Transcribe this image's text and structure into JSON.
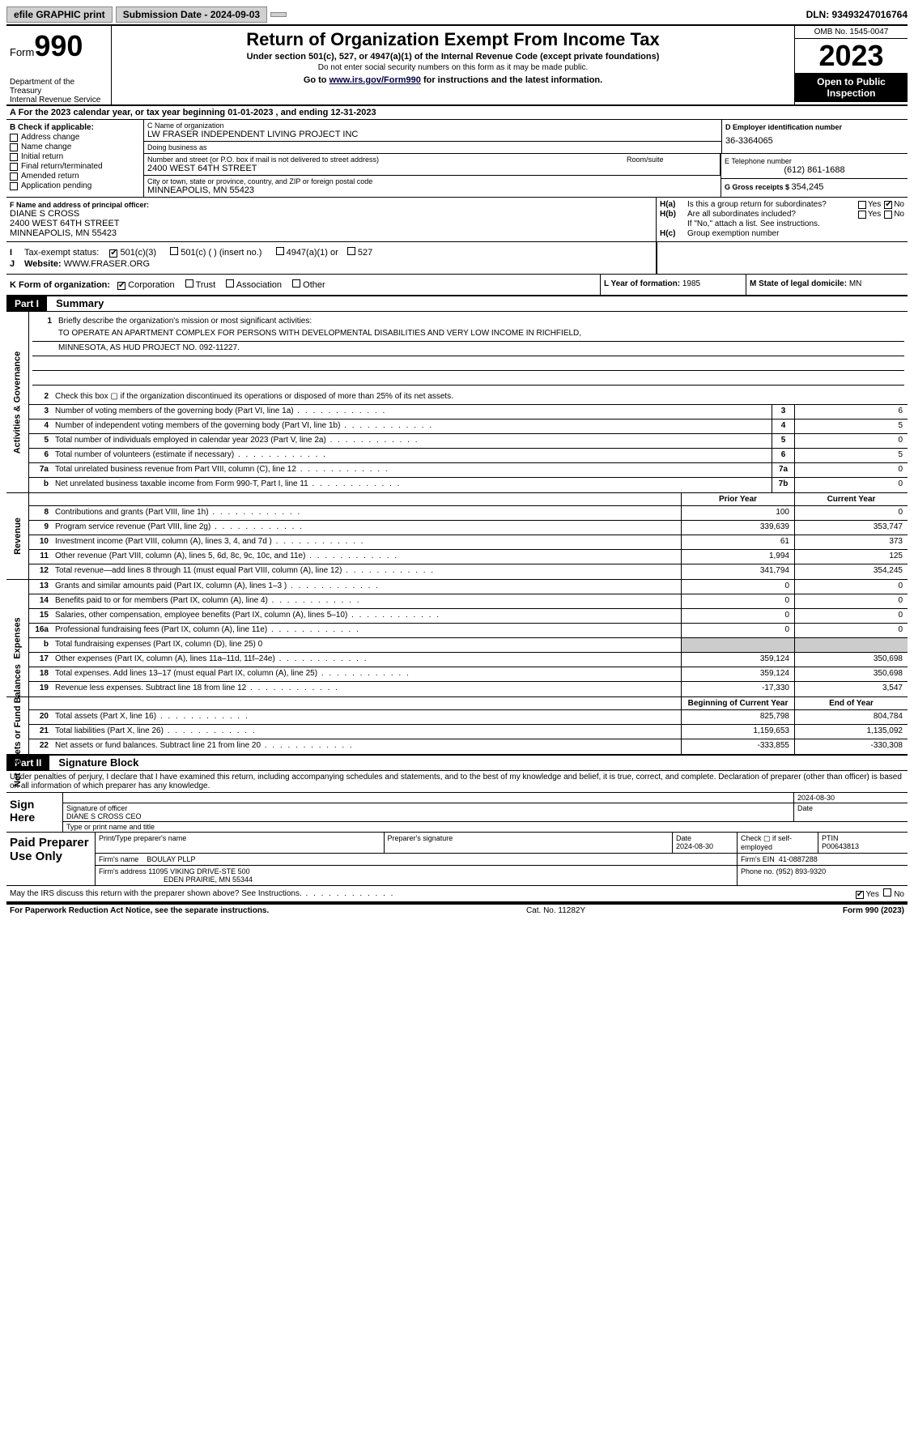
{
  "topbar": {
    "efile": "efile GRAPHIC print",
    "submission_label": "Submission Date - 2024-09-03",
    "dln": "DLN: 93493247016764"
  },
  "header": {
    "form_prefix": "Form",
    "form_number": "990",
    "dept": "Department of the Treasury",
    "irs": "Internal Revenue Service",
    "title": "Return of Organization Exempt From Income Tax",
    "subtitle": "Under section 501(c), 527, or 4947(a)(1) of the Internal Revenue Code (except private foundations)",
    "note": "Do not enter social security numbers on this form as it may be made public.",
    "goto_prefix": "Go to ",
    "goto_link": "www.irs.gov/Form990",
    "goto_suffix": " for instructions and the latest information.",
    "omb": "OMB No. 1545-0047",
    "year": "2023",
    "open": "Open to Public Inspection"
  },
  "row_a": "A  For the 2023 calendar year, or tax year beginning 01-01-2023    , and ending 12-31-2023",
  "col_b": {
    "header": "B Check if applicable:",
    "items": [
      "Address change",
      "Name change",
      "Initial return",
      "Final return/terminated",
      "Amended return",
      "Application pending"
    ]
  },
  "col_c": {
    "name_lbl": "C Name of organization",
    "name": "LW FRASER INDEPENDENT LIVING PROJECT INC",
    "dba_lbl": "Doing business as",
    "dba": "",
    "street_lbl": "Number and street (or P.O. box if mail is not delivered to street address)",
    "street": "2400 WEST 64TH STREET",
    "suite_lbl": "Room/suite",
    "city_lbl": "City or town, state or province, country, and ZIP or foreign postal code",
    "city": "MINNEAPOLIS, MN  55423"
  },
  "col_d": {
    "ein_lbl": "D Employer identification number",
    "ein": "36-3364065",
    "phone_lbl": "E Telephone number",
    "phone": "(612) 861-1688",
    "gross_lbl": "G Gross receipts $ ",
    "gross": "354,245"
  },
  "row_f": {
    "lbl": "F  Name and address of principal officer:",
    "name": "DIANE S CROSS",
    "street": "2400 WEST 64TH STREET",
    "city": "MINNEAPOLIS, MN  55423"
  },
  "row_h": {
    "ha_lbl": "H(a)",
    "ha_txt": "Is this a group return for subordinates?",
    "hb_lbl": "H(b)",
    "hb_txt": "Are all subordinates included?",
    "hb_note": "If \"No,\" attach a list. See instructions.",
    "hc_lbl": "H(c)",
    "hc_txt": "Group exemption number",
    "yes": "Yes",
    "no": "No"
  },
  "row_i": {
    "lbl": "Tax-exempt status:",
    "opt1": "501(c)(3)",
    "opt2": "501(c) (  ) (insert no.)",
    "opt3": "4947(a)(1) or",
    "opt4": "527"
  },
  "row_j": {
    "lbl": "Website:",
    "val": "WWW.FRASER.ORG"
  },
  "row_k": {
    "lbl": "K Form of organization:",
    "corp": "Corporation",
    "trust": "Trust",
    "assoc": "Association",
    "other": "Other"
  },
  "row_l": {
    "lbl": "L Year of formation: ",
    "val": "1985"
  },
  "row_m": {
    "lbl": "M State of legal domicile: ",
    "val": "MN"
  },
  "part1": {
    "hdr": "Part I",
    "title": "Summary"
  },
  "mission": {
    "line1_lbl": "Briefly describe the organization's mission or most significant activities:",
    "line1": "TO OPERATE AN APARTMENT COMPLEX FOR PERSONS WITH DEVELOPMENTAL DISABILITIES AND VERY LOW INCOME IN RICHFIELD,",
    "line2": "MINNESOTA, AS HUD PROJECT NO. 092-11227."
  },
  "gov_lines": [
    {
      "n": "2",
      "t": "Check this box ▢ if the organization discontinued its operations or disposed of more than 25% of its net assets."
    },
    {
      "n": "3",
      "t": "Number of voting members of the governing body (Part VI, line 1a)",
      "box": "3",
      "v": "6"
    },
    {
      "n": "4",
      "t": "Number of independent voting members of the governing body (Part VI, line 1b)",
      "box": "4",
      "v": "5"
    },
    {
      "n": "5",
      "t": "Total number of individuals employed in calendar year 2023 (Part V, line 2a)",
      "box": "5",
      "v": "0"
    },
    {
      "n": "6",
      "t": "Total number of volunteers (estimate if necessary)",
      "box": "6",
      "v": "5"
    },
    {
      "n": "7a",
      "t": "Total unrelated business revenue from Part VIII, column (C), line 12",
      "box": "7a",
      "v": "0"
    },
    {
      "n": "b",
      "t": "Net unrelated business taxable income from Form 990-T, Part I, line 11",
      "box": "7b",
      "v": "0"
    }
  ],
  "rev_hdr": {
    "prior": "Prior Year",
    "current": "Current Year"
  },
  "rev_lines": [
    {
      "n": "8",
      "t": "Contributions and grants (Part VIII, line 1h)",
      "p": "100",
      "c": "0"
    },
    {
      "n": "9",
      "t": "Program service revenue (Part VIII, line 2g)",
      "p": "339,639",
      "c": "353,747"
    },
    {
      "n": "10",
      "t": "Investment income (Part VIII, column (A), lines 3, 4, and 7d )",
      "p": "61",
      "c": "373"
    },
    {
      "n": "11",
      "t": "Other revenue (Part VIII, column (A), lines 5, 6d, 8c, 9c, 10c, and 11e)",
      "p": "1,994",
      "c": "125"
    },
    {
      "n": "12",
      "t": "Total revenue—add lines 8 through 11 (must equal Part VIII, column (A), line 12)",
      "p": "341,794",
      "c": "354,245"
    }
  ],
  "exp_lines": [
    {
      "n": "13",
      "t": "Grants and similar amounts paid (Part IX, column (A), lines 1–3 )",
      "p": "0",
      "c": "0"
    },
    {
      "n": "14",
      "t": "Benefits paid to or for members (Part IX, column (A), line 4)",
      "p": "0",
      "c": "0"
    },
    {
      "n": "15",
      "t": "Salaries, other compensation, employee benefits (Part IX, column (A), lines 5–10)",
      "p": "0",
      "c": "0"
    },
    {
      "n": "16a",
      "t": "Professional fundraising fees (Part IX, column (A), line 11e)",
      "p": "0",
      "c": "0"
    },
    {
      "n": "b",
      "t": "Total fundraising expenses (Part IX, column (D), line 25) 0",
      "grey": true
    },
    {
      "n": "17",
      "t": "Other expenses (Part IX, column (A), lines 11a–11d, 11f–24e)",
      "p": "359,124",
      "c": "350,698"
    },
    {
      "n": "18",
      "t": "Total expenses. Add lines 13–17 (must equal Part IX, column (A), line 25)",
      "p": "359,124",
      "c": "350,698"
    },
    {
      "n": "19",
      "t": "Revenue less expenses. Subtract line 18 from line 12",
      "p": "-17,330",
      "c": "3,547"
    }
  ],
  "net_hdr": {
    "begin": "Beginning of Current Year",
    "end": "End of Year"
  },
  "net_lines": [
    {
      "n": "20",
      "t": "Total assets (Part X, line 16)",
      "p": "825,798",
      "c": "804,784"
    },
    {
      "n": "21",
      "t": "Total liabilities (Part X, line 26)",
      "p": "1,159,653",
      "c": "1,135,092"
    },
    {
      "n": "22",
      "t": "Net assets or fund balances. Subtract line 21 from line 20",
      "p": "-333,855",
      "c": "-330,308"
    }
  ],
  "side_labels": {
    "gov": "Activities & Governance",
    "rev": "Revenue",
    "exp": "Expenses",
    "net": "Net Assets or Fund Balances"
  },
  "part2": {
    "hdr": "Part II",
    "title": "Signature Block"
  },
  "declare": "Under penalties of perjury, I declare that I have examined this return, including accompanying schedules and statements, and to the best of my knowledge and belief, it is true, correct, and complete. Declaration of preparer (other than officer) is based on all information of which preparer has any knowledge.",
  "sign": {
    "here": "Sign Here",
    "sig_lbl": "Signature of officer",
    "date_lbl": "Date",
    "date": "2024-08-30",
    "name": "DIANE S CROSS CEO",
    "type_lbl": "Type or print name and title"
  },
  "paid": {
    "hdr": "Paid Preparer Use Only",
    "name_lbl": "Print/Type preparer's name",
    "sig_lbl": "Preparer's signature",
    "date_lbl": "Date",
    "date": "2024-08-30",
    "check_lbl": "Check ▢ if self-employed",
    "ptin_lbl": "PTIN",
    "ptin": "P00643813",
    "firm_name_lbl": "Firm's name",
    "firm_name": "BOULAY PLLP",
    "firm_ein_lbl": "Firm's EIN",
    "firm_ein": "41-0887288",
    "firm_addr_lbl": "Firm's address",
    "firm_addr": "11095 VIKING DRIVE-STE 500",
    "firm_city": "EDEN PRAIRIE, MN  55344",
    "phone_lbl": "Phone no.",
    "phone": "(952) 893-9320"
  },
  "discuss": {
    "txt": "May the IRS discuss this return with the preparer shown above? See Instructions.",
    "yes": "Yes",
    "no": "No"
  },
  "footer": {
    "l": "For Paperwork Reduction Act Notice, see the separate instructions.",
    "m": "Cat. No. 11282Y",
    "r": "Form 990 (2023)"
  }
}
